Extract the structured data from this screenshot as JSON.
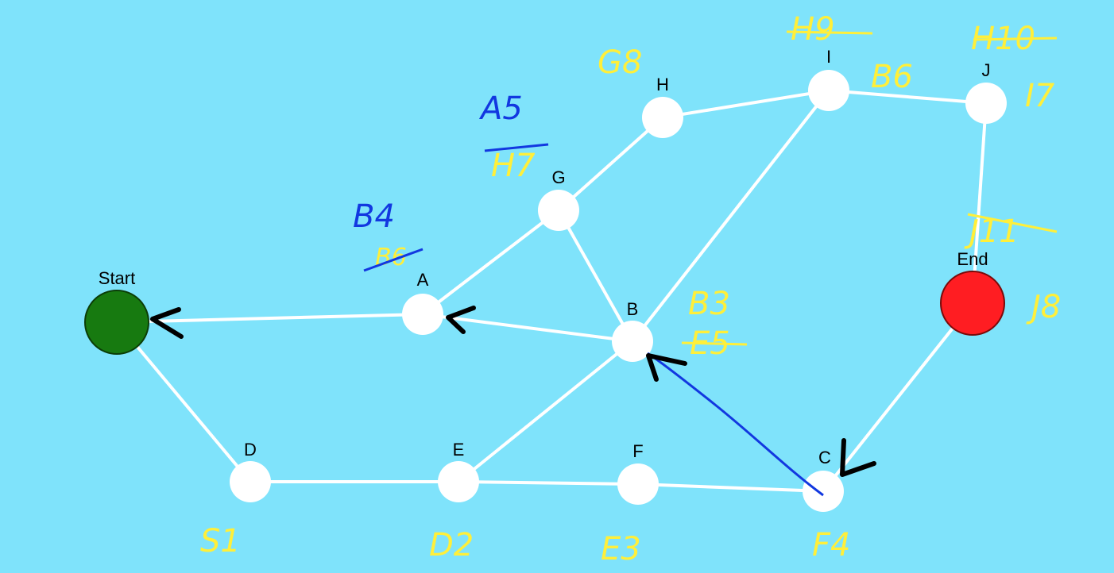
{
  "colors": {
    "background": "#7fe3fb",
    "edge": "#ffffff",
    "node": "#ffffff",
    "start_node": "#177a10",
    "end_node": "#ff1d22",
    "annotation_yellow": "#ffef3a",
    "annotation_blue": "#1238e0",
    "annotation_black": "#000000"
  },
  "nodes": [
    {
      "id": "start",
      "label": "Start"
    },
    {
      "id": "A",
      "label": "A"
    },
    {
      "id": "B",
      "label": "B"
    },
    {
      "id": "C",
      "label": "C"
    },
    {
      "id": "D",
      "label": "D"
    },
    {
      "id": "E",
      "label": "E"
    },
    {
      "id": "F",
      "label": "F"
    },
    {
      "id": "G",
      "label": "G"
    },
    {
      "id": "H",
      "label": "H"
    },
    {
      "id": "I",
      "label": "I"
    },
    {
      "id": "J",
      "label": "J"
    },
    {
      "id": "end",
      "label": "End"
    }
  ],
  "edges": [
    [
      "start",
      "A"
    ],
    [
      "start",
      "D"
    ],
    [
      "A",
      "G"
    ],
    [
      "A",
      "B"
    ],
    [
      "G",
      "H"
    ],
    [
      "G",
      "B"
    ],
    [
      "H",
      "I"
    ],
    [
      "I",
      "J"
    ],
    [
      "I",
      "B"
    ],
    [
      "J",
      "end"
    ],
    [
      "end",
      "C"
    ],
    [
      "B",
      "E"
    ],
    [
      "D",
      "E"
    ],
    [
      "E",
      "F"
    ],
    [
      "F",
      "C"
    ]
  ],
  "annotations": {
    "yellow": {
      "D": "S1",
      "E": "D2",
      "F": "E3",
      "C": "F4",
      "B_top": "B3",
      "B_crossed": "E5",
      "A_crossed": "B6",
      "G_crossed": "H7",
      "H": "G8",
      "I_crossed": "H9",
      "I": "B6",
      "J_crossed": "H10",
      "J": "I7",
      "end_crossed": "J11",
      "end": "J8"
    },
    "blue": {
      "A": "B4",
      "G": "A5"
    }
  }
}
